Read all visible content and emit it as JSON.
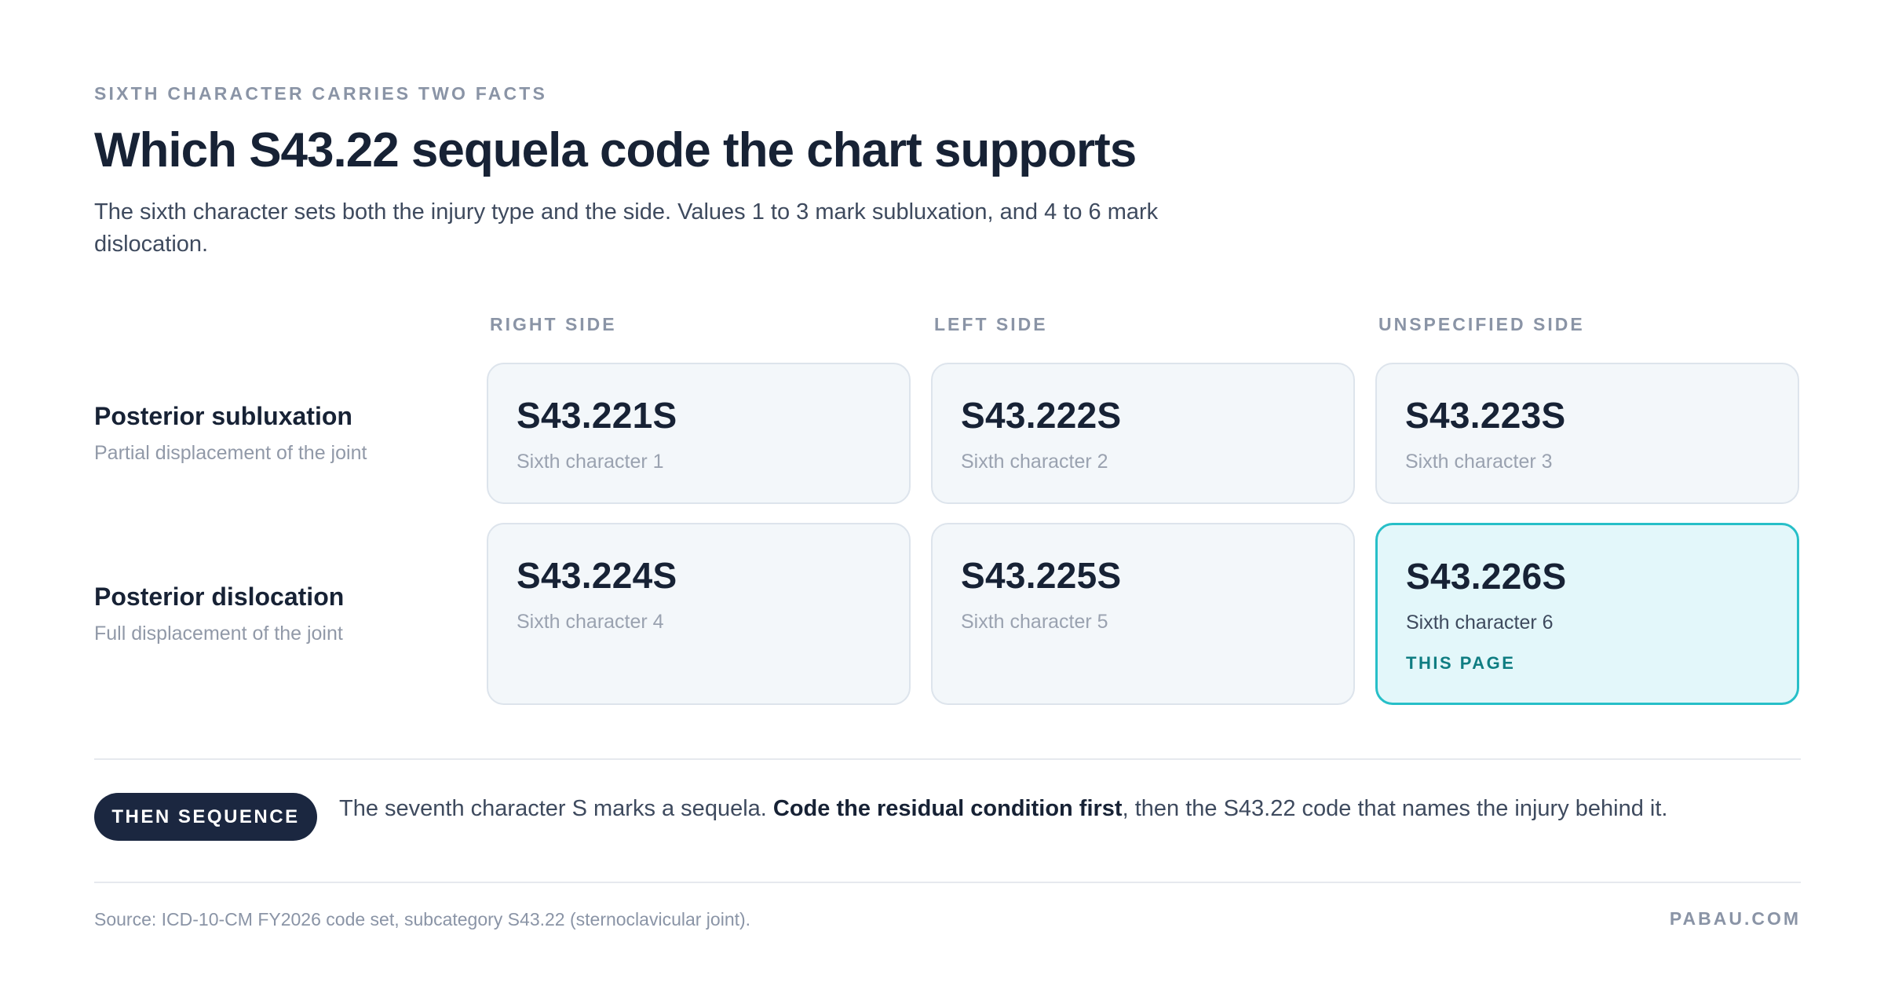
{
  "eyebrow": "SIXTH CHARACTER CARRIES TWO FACTS",
  "title": "Which S43.22 sequela code the chart supports",
  "subtitle": "The sixth character sets both the injury type and the side. Values 1 to 3 mark subluxation, and 4 to 6 mark dislocation.",
  "columns": [
    "RIGHT SIDE",
    "LEFT SIDE",
    "UNSPECIFIED SIDE"
  ],
  "rows": [
    {
      "name": "Posterior subluxation",
      "desc": "Partial displacement of the joint",
      "cells": [
        {
          "code": "S43.221S",
          "sub": "Sixth character 1"
        },
        {
          "code": "S43.222S",
          "sub": "Sixth character 2"
        },
        {
          "code": "S43.223S",
          "sub": "Sixth character 3"
        }
      ]
    },
    {
      "name": "Posterior dislocation",
      "desc": "Full displacement of the joint",
      "cells": [
        {
          "code": "S43.224S",
          "sub": "Sixth character 4"
        },
        {
          "code": "S43.225S",
          "sub": "Sixth character 5"
        },
        {
          "code": "S43.226S",
          "sub": "Sixth character 6",
          "badge": "THIS PAGE"
        }
      ]
    }
  ],
  "sequence": {
    "pill": "THEN SEQUENCE",
    "text_before": "The seventh character S marks a sequela. ",
    "text_bold": "Code the residual condition first",
    "text_after": ", then the S43.22 code that names the injury behind it."
  },
  "footer": {
    "source": "Source: ICD-10-CM FY2026 code set, subcategory S43.22 (sternoclavicular joint).",
    "brand": "PABAU.COM"
  },
  "colors": {
    "accent": "#27bfc8",
    "accent_text": "#0f7d82",
    "heading": "#172235",
    "muted": "#8a94a6"
  }
}
